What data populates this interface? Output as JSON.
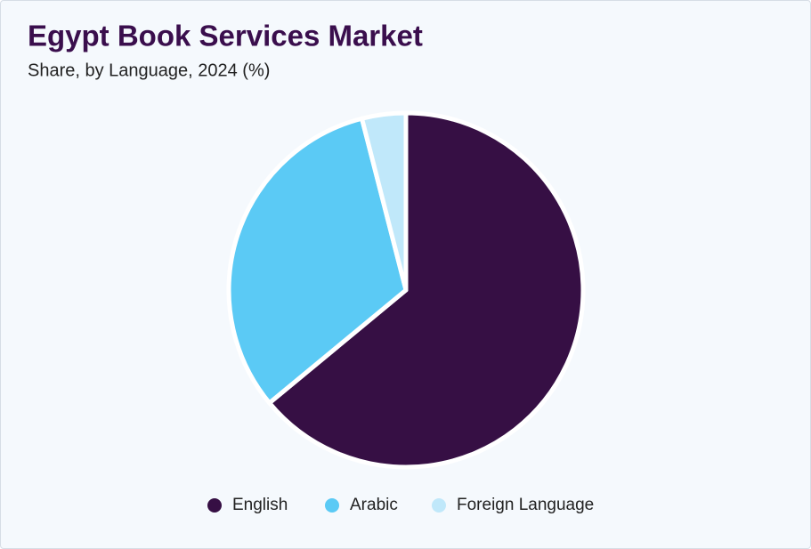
{
  "chart_data": {
    "type": "pie",
    "title": "Egypt Book Services Market",
    "subtitle": "Share, by Language, 2024 (%)",
    "categories": [
      "English",
      "Arabic",
      "Foreign Language"
    ],
    "values": [
      64,
      32,
      4
    ],
    "colors": [
      "#360f44",
      "#5bcaf5",
      "#c0e8fa"
    ]
  }
}
